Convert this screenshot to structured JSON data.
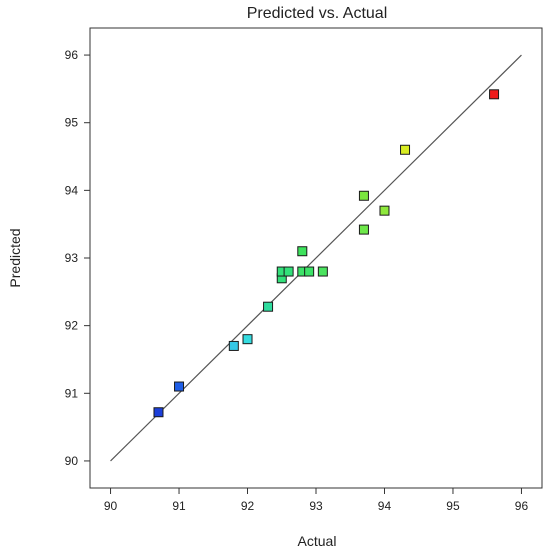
{
  "chart_data": {
    "type": "scatter",
    "title": "Predicted vs. Actual",
    "xlabel": "Actual",
    "ylabel": "Predicted",
    "xlim": [
      89.7,
      96.3
    ],
    "ylim": [
      89.6,
      96.4
    ],
    "xticks": [
      "90",
      "91",
      "92",
      "93",
      "94",
      "95",
      "96"
    ],
    "yticks": [
      "90",
      "91",
      "92",
      "93",
      "94",
      "95",
      "96"
    ],
    "grid": false,
    "reference_line": {
      "from": [
        90,
        90
      ],
      "to": [
        96,
        96
      ],
      "color": "#555555"
    },
    "points": [
      {
        "x": 90.7,
        "y": 90.72,
        "color": "#1c3fd9"
      },
      {
        "x": 91.0,
        "y": 91.1,
        "color": "#1f5ee6"
      },
      {
        "x": 91.8,
        "y": 91.7,
        "color": "#35c7e6"
      },
      {
        "x": 92.0,
        "y": 91.8,
        "color": "#35dce0"
      },
      {
        "x": 92.3,
        "y": 92.28,
        "color": "#2fdc9e"
      },
      {
        "x": 92.5,
        "y": 92.7,
        "color": "#33e07a"
      },
      {
        "x": 92.5,
        "y": 92.8,
        "color": "#33e07a"
      },
      {
        "x": 92.6,
        "y": 92.8,
        "color": "#33e07a"
      },
      {
        "x": 92.8,
        "y": 92.8,
        "color": "#3de268"
      },
      {
        "x": 92.9,
        "y": 92.8,
        "color": "#3de268"
      },
      {
        "x": 93.1,
        "y": 92.8,
        "color": "#4be35f"
      },
      {
        "x": 92.8,
        "y": 93.1,
        "color": "#3de25c"
      },
      {
        "x": 93.7,
        "y": 93.42,
        "color": "#6ee84a"
      },
      {
        "x": 93.7,
        "y": 93.92,
        "color": "#7ae63e"
      },
      {
        "x": 94.0,
        "y": 93.7,
        "color": "#8ee83c"
      },
      {
        "x": 94.3,
        "y": 94.6,
        "color": "#d8ec22"
      },
      {
        "x": 95.6,
        "y": 95.42,
        "color": "#ee1a1a"
      }
    ]
  }
}
